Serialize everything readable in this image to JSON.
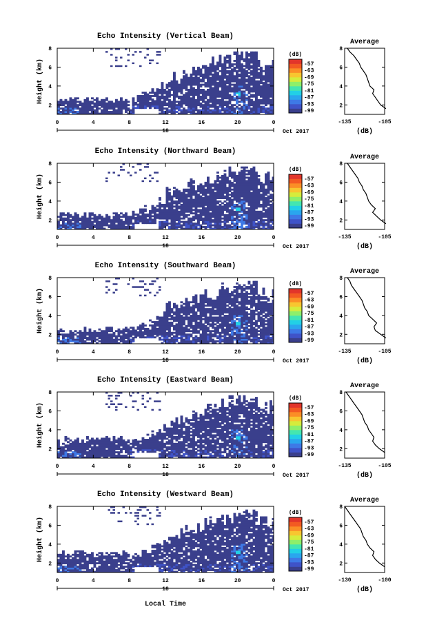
{
  "figure": {
    "xlabel_bottom": "Local Time",
    "date_label": "Oct 2017",
    "day_marker": "18",
    "colorbar_unit": "(dB)",
    "colorbar_ticks": [
      "-57",
      "-63",
      "-69",
      "-75",
      "-81",
      "-87",
      "-93",
      "-99"
    ],
    "colorbar_colors": [
      "#3a3f8c",
      "#3f53c8",
      "#3e79e6",
      "#2aa6ee",
      "#22d0e6",
      "#44e6b0",
      "#8eef6a",
      "#d6ec3c",
      "#f8c630",
      "#fb8e26",
      "#f35a22",
      "#e2352a"
    ]
  },
  "chart_data": [
    {
      "type": "heatmap",
      "title": "Echo Intensity (Vertical Beam)",
      "ylabel": "Height (km)",
      "xlim": [
        0,
        24
      ],
      "ylim": [
        1,
        8
      ],
      "x_ticks": [
        "0",
        "4",
        "8",
        "12",
        "16",
        "20",
        "0"
      ],
      "y_ticks": [
        "2",
        "4",
        "6",
        "8"
      ],
      "avg_title": "Average",
      "avg_xlabel": "(dB)",
      "avg_xticks": [
        "-135",
        "-105"
      ],
      "avg_xlim": [
        -135,
        -105
      ],
      "avg_profile": [
        [
          -104,
          1.6
        ],
        [
          -108,
          2.0
        ],
        [
          -110,
          2.4
        ],
        [
          -112,
          2.8
        ],
        [
          -114,
          3.2
        ],
        [
          -113,
          3.6
        ],
        [
          -116,
          4.0
        ],
        [
          -117,
          4.4
        ],
        [
          -118,
          4.8
        ],
        [
          -119,
          5.2
        ],
        [
          -121,
          5.6
        ],
        [
          -123,
          6.0
        ],
        [
          -124,
          6.4
        ],
        [
          -126,
          6.8
        ],
        [
          -128,
          7.2
        ],
        [
          -131,
          7.6
        ],
        [
          -133,
          8.0
        ]
      ]
    },
    {
      "type": "heatmap",
      "title": "Echo Intensity (Northward Beam)",
      "ylabel": "Height (km)",
      "xlim": [
        0,
        24
      ],
      "ylim": [
        1,
        8
      ],
      "x_ticks": [
        "0",
        "4",
        "8",
        "12",
        "16",
        "20",
        "0"
      ],
      "y_ticks": [
        "2",
        "4",
        "6",
        "8"
      ],
      "avg_title": "Average",
      "avg_xlabel": "(dB)",
      "avg_xticks": [
        "-135",
        "-105"
      ],
      "avg_xlim": [
        -135,
        -105
      ],
      "avg_profile": [
        [
          -104,
          1.6
        ],
        [
          -108,
          2.0
        ],
        [
          -111,
          2.4
        ],
        [
          -114,
          2.8
        ],
        [
          -112,
          3.2
        ],
        [
          -115,
          3.6
        ],
        [
          -117,
          4.0
        ],
        [
          -118,
          4.4
        ],
        [
          -119,
          4.8
        ],
        [
          -121,
          5.2
        ],
        [
          -122,
          5.6
        ],
        [
          -124,
          6.0
        ],
        [
          -125,
          6.4
        ],
        [
          -127,
          6.8
        ],
        [
          -129,
          7.2
        ],
        [
          -131,
          7.6
        ],
        [
          -133,
          8.0
        ]
      ]
    },
    {
      "type": "heatmap",
      "title": "Echo Intensity (Southward Beam)",
      "ylabel": "Height (km)",
      "xlim": [
        0,
        24
      ],
      "ylim": [
        1,
        8
      ],
      "x_ticks": [
        "0",
        "4",
        "8",
        "12",
        "16",
        "20",
        "0"
      ],
      "y_ticks": [
        "2",
        "4",
        "6",
        "8"
      ],
      "avg_title": "Average",
      "avg_xlabel": "(dB)",
      "avg_xticks": [
        "-135",
        "-105"
      ],
      "avg_xlim": [
        -135,
        -105
      ],
      "avg_profile": [
        [
          -104,
          1.6
        ],
        [
          -108,
          2.0
        ],
        [
          -112,
          2.4
        ],
        [
          -113,
          2.8
        ],
        [
          -111,
          3.2
        ],
        [
          -114,
          3.6
        ],
        [
          -117,
          4.0
        ],
        [
          -118,
          4.4
        ],
        [
          -120,
          4.8
        ],
        [
          -121,
          5.2
        ],
        [
          -122,
          5.6
        ],
        [
          -124,
          6.0
        ],
        [
          -126,
          6.4
        ],
        [
          -128,
          6.8
        ],
        [
          -130,
          7.2
        ],
        [
          -131,
          7.6
        ],
        [
          -133,
          8.0
        ]
      ]
    },
    {
      "type": "heatmap",
      "title": "Echo Intensity (Eastward Beam)",
      "ylabel": "Height (km)",
      "xlim": [
        0,
        24
      ],
      "ylim": [
        1,
        8
      ],
      "x_ticks": [
        "0",
        "4",
        "8",
        "12",
        "16",
        "20",
        "0"
      ],
      "y_ticks": [
        "2",
        "4",
        "6",
        "8"
      ],
      "avg_title": "Average",
      "avg_xlabel": "(dB)",
      "avg_xticks": [
        "-135",
        "-105"
      ],
      "avg_xlim": [
        -135,
        -105
      ],
      "avg_profile": [
        [
          -105,
          1.6
        ],
        [
          -109,
          2.0
        ],
        [
          -112,
          2.4
        ],
        [
          -114,
          2.8
        ],
        [
          -113,
          3.2
        ],
        [
          -115,
          3.6
        ],
        [
          -117,
          4.0
        ],
        [
          -118,
          4.4
        ],
        [
          -120,
          4.8
        ],
        [
          -121,
          5.2
        ],
        [
          -122,
          5.6
        ],
        [
          -124,
          6.0
        ],
        [
          -126,
          6.4
        ],
        [
          -128,
          6.8
        ],
        [
          -130,
          7.2
        ],
        [
          -132,
          7.6
        ],
        [
          -134,
          8.0
        ]
      ]
    },
    {
      "type": "heatmap",
      "title": "Echo Intensity (Westward Beam)",
      "ylabel": "Height (km)",
      "xlim": [
        0,
        24
      ],
      "ylim": [
        1,
        8
      ],
      "x_ticks": [
        "0",
        "4",
        "8",
        "12",
        "16",
        "20",
        "0"
      ],
      "y_ticks": [
        "2",
        "4",
        "6",
        "8"
      ],
      "avg_title": "Average",
      "avg_xlabel": "(dB)",
      "avg_xticks": [
        "-130",
        "-100"
      ],
      "avg_xlim": [
        -130,
        -100
      ],
      "avg_profile": [
        [
          -100,
          1.6
        ],
        [
          -104,
          2.0
        ],
        [
          -107,
          2.4
        ],
        [
          -109,
          2.8
        ],
        [
          -108,
          3.2
        ],
        [
          -111,
          3.6
        ],
        [
          -113,
          4.0
        ],
        [
          -114,
          4.4
        ],
        [
          -116,
          4.8
        ],
        [
          -117,
          5.2
        ],
        [
          -118,
          5.6
        ],
        [
          -120,
          6.0
        ],
        [
          -122,
          6.4
        ],
        [
          -124,
          6.8
        ],
        [
          -126,
          7.2
        ],
        [
          -128,
          7.6
        ],
        [
          -130,
          8.0
        ]
      ]
    }
  ]
}
